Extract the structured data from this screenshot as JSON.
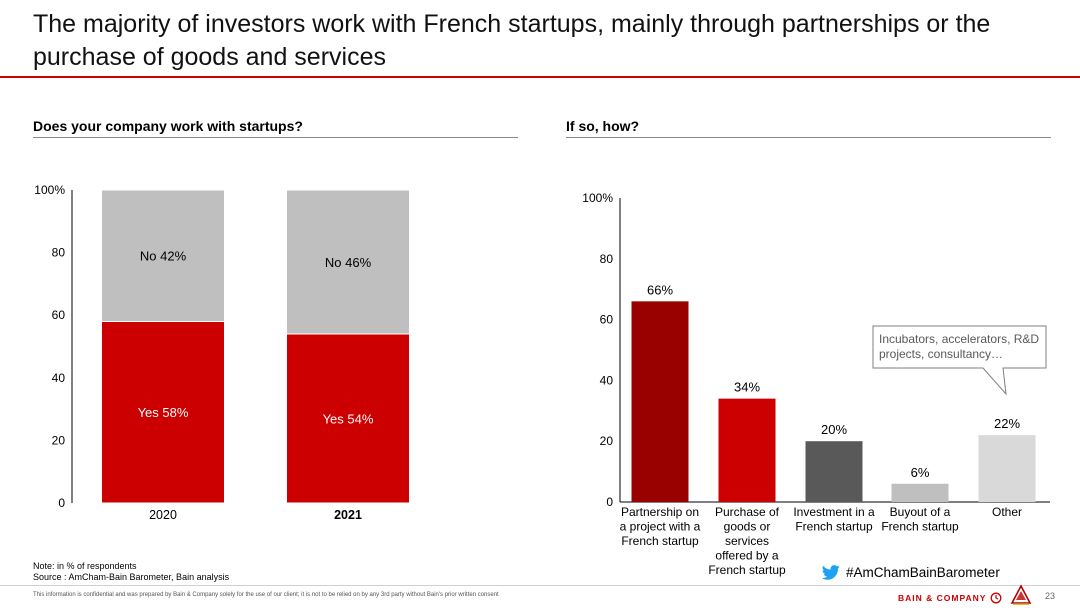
{
  "slide": {
    "title": "The majority of investors work with French startups, mainly through partnerships or the purchase of goods and services",
    "accent_color": "#cc0000"
  },
  "left_chart": {
    "heading": "Does your company work with startups?"
  },
  "right_chart": {
    "heading": "If so, how?",
    "callout": "Incubators, accelerators, R&D projects, consultancy…"
  },
  "chart_data": [
    {
      "type": "bar",
      "stacked": true,
      "categories": [
        "2020",
        "2021"
      ],
      "series": [
        {
          "name": "Yes",
          "values": [
            58,
            54
          ],
          "color": "#cc0000",
          "labels": [
            "Yes 58%",
            "Yes 54%"
          ]
        },
        {
          "name": "No",
          "values": [
            42,
            46
          ],
          "color": "#bfbfbf",
          "labels": [
            "No 42%",
            "No 46%"
          ]
        }
      ],
      "yticks": [
        "0",
        "20",
        "40",
        "60",
        "80",
        "100%"
      ],
      "ylim": [
        0,
        100
      ]
    },
    {
      "type": "bar",
      "categories": [
        [
          "Partnership on",
          "a project with a",
          "French startup"
        ],
        [
          "Purchase of",
          "goods or",
          "services",
          "offered by a",
          "French startup"
        ],
        [
          "Investment in a",
          "French startup"
        ],
        [
          "Buyout of a",
          "French startup"
        ],
        [
          "Other"
        ]
      ],
      "values": [
        66,
        34,
        20,
        6,
        22
      ],
      "value_labels": [
        "66%",
        "34%",
        "20%",
        "6%",
        "22%"
      ],
      "colors": [
        "#990000",
        "#cc0000",
        "#595959",
        "#bfbfbf",
        "#d9d9d9"
      ],
      "yticks": [
        "0",
        "20",
        "40",
        "60",
        "80",
        "100%"
      ],
      "ylim": [
        0,
        100
      ]
    }
  ],
  "footer": {
    "note": "Note: in % of respondents",
    "source": "Source : AmCham-Bain Barometer, Bain analysis",
    "disclaimer": "This information is confidential and was prepared by Bain & Company solely for the use of our client; it is not to be relied on by any 3rd party without Bain's prior written consent",
    "hashtag": "#AmChamBainBarometer",
    "brand": "BAIN & COMPANY",
    "page_number": "23"
  }
}
